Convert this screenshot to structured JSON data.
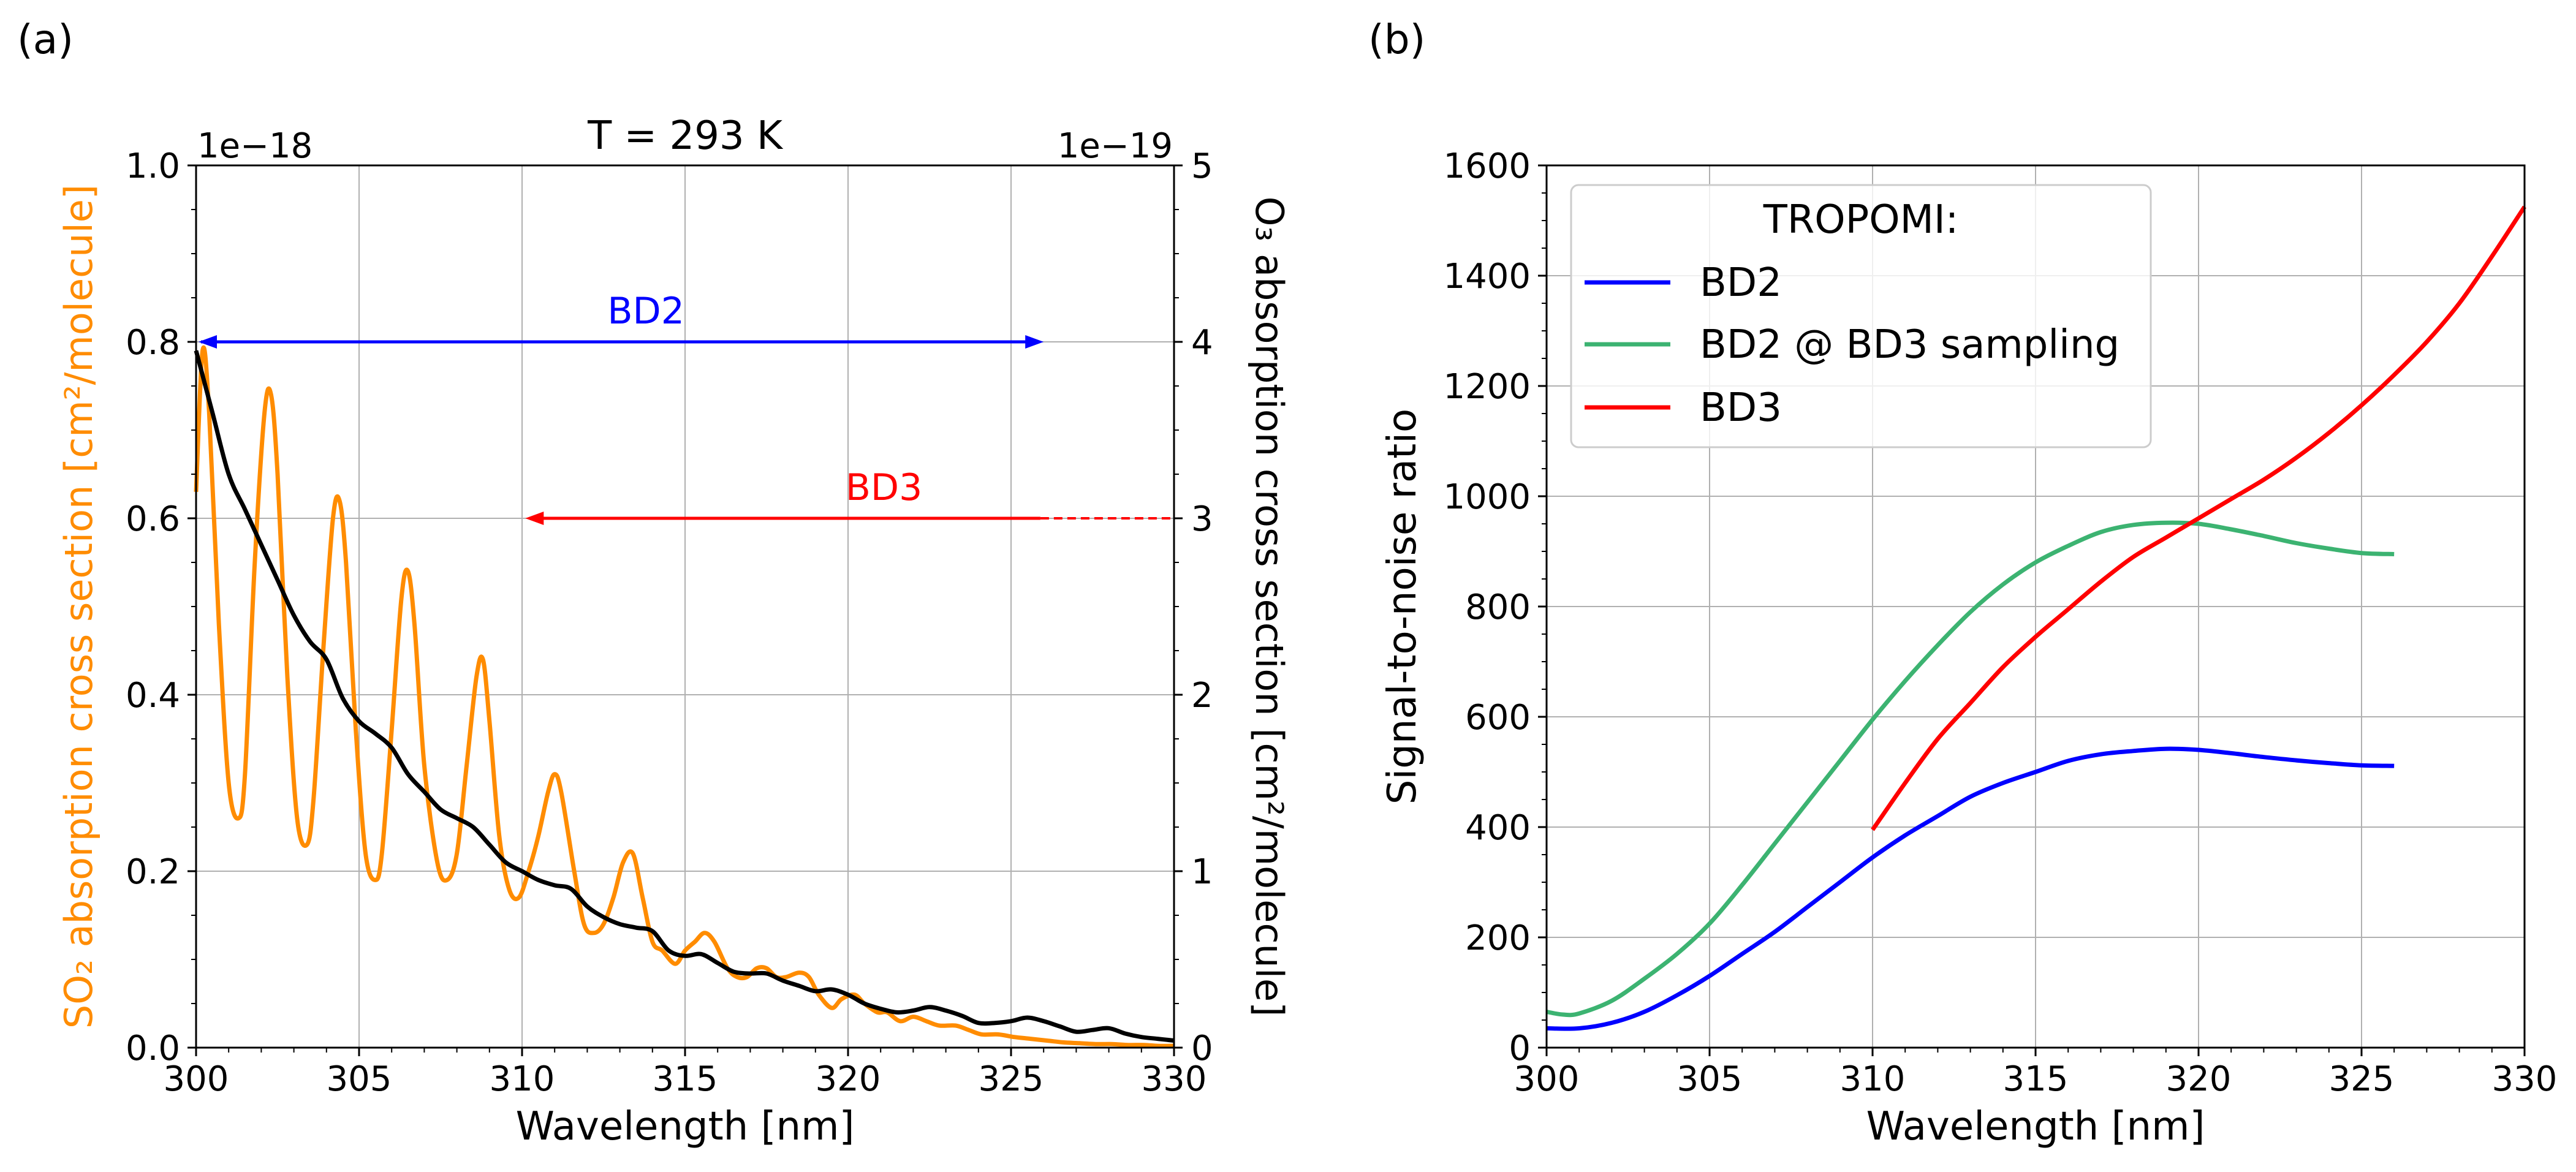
{
  "figure": {
    "panel_a_label": "(a)",
    "panel_b_label": "(b)"
  },
  "chart_data": [
    {
      "type": "line",
      "panel": "(a)",
      "title": "T = 293 K",
      "xlabel": "Wavelength [nm]",
      "ylabel_left": "SO₂ absorption cross section [cm²/molecule]",
      "ylabel_right": "O₃ absorption cross section [cm²/molecule]",
      "offset_left": "1e−18",
      "offset_right": "1e−19",
      "xlim": [
        300,
        330
      ],
      "ylim_left": [
        0.0,
        1.0
      ],
      "ylim_right": [
        0,
        5
      ],
      "xticks": [
        "300",
        "305",
        "310",
        "315",
        "320",
        "325",
        "330"
      ],
      "yticks_left": [
        "0.0",
        "0.2",
        "0.4",
        "0.6",
        "0.8",
        "1.0"
      ],
      "yticks_right": [
        "0",
        "1",
        "2",
        "3",
        "4",
        "5"
      ],
      "grid": true,
      "colors": {
        "so2": "#ff8c00",
        "o3": "#000000",
        "bd2": "#0000ff",
        "bd3": "#ff0000",
        "grid": "#b0b0b0"
      },
      "series": [
        {
          "key": "so2",
          "axis": "left",
          "x": [
            300.0,
            300.2,
            300.4,
            300.7,
            301.0,
            301.3,
            301.5,
            301.8,
            302.1,
            302.3,
            302.5,
            302.8,
            303.1,
            303.4,
            303.6,
            303.9,
            304.2,
            304.4,
            304.6,
            304.9,
            305.2,
            305.5,
            305.7,
            306.0,
            306.3,
            306.5,
            306.7,
            307.0,
            307.4,
            307.7,
            308.0,
            308.3,
            308.6,
            308.8,
            309.0,
            309.3,
            309.6,
            309.9,
            310.2,
            310.5,
            310.8,
            311.0,
            311.2,
            311.6,
            311.9,
            312.2,
            312.5,
            312.8,
            313.1,
            313.4,
            313.7,
            314.0,
            314.3,
            314.7,
            315.0,
            315.3,
            315.6,
            315.9,
            316.3,
            316.6,
            316.9,
            317.2,
            317.5,
            317.8,
            318.1,
            318.5,
            318.8,
            319.1,
            319.5,
            319.8,
            320.2,
            320.5,
            320.9,
            321.2,
            321.6,
            322.0,
            322.4,
            322.8,
            323.3,
            323.7,
            324.1,
            324.6,
            325.1,
            325.6,
            326.1,
            326.6,
            327.1,
            327.6,
            328.1,
            328.6,
            329.1,
            329.5,
            330.0
          ],
          "y": [
            0.63,
            0.79,
            0.72,
            0.48,
            0.3,
            0.26,
            0.31,
            0.55,
            0.72,
            0.74,
            0.65,
            0.42,
            0.26,
            0.23,
            0.28,
            0.45,
            0.6,
            0.62,
            0.55,
            0.36,
            0.22,
            0.19,
            0.22,
            0.36,
            0.51,
            0.54,
            0.48,
            0.32,
            0.21,
            0.19,
            0.22,
            0.32,
            0.42,
            0.44,
            0.37,
            0.24,
            0.18,
            0.17,
            0.2,
            0.24,
            0.29,
            0.31,
            0.29,
            0.2,
            0.14,
            0.13,
            0.14,
            0.17,
            0.21,
            0.22,
            0.17,
            0.12,
            0.11,
            0.095,
            0.11,
            0.12,
            0.13,
            0.12,
            0.09,
            0.08,
            0.08,
            0.09,
            0.09,
            0.08,
            0.08,
            0.085,
            0.08,
            0.06,
            0.045,
            0.055,
            0.06,
            0.05,
            0.04,
            0.04,
            0.03,
            0.035,
            0.03,
            0.025,
            0.025,
            0.02,
            0.015,
            0.015,
            0.012,
            0.01,
            0.008,
            0.006,
            0.005,
            0.004,
            0.004,
            0.003,
            0.003,
            0.002,
            0.002
          ]
        },
        {
          "key": "o3",
          "axis": "right",
          "x": [
            300.0,
            300.5,
            301.0,
            301.5,
            302.0,
            302.5,
            303.0,
            303.5,
            304.0,
            304.5,
            305.0,
            305.5,
            306.0,
            306.5,
            307.0,
            307.5,
            308.0,
            308.5,
            309.0,
            309.5,
            310.0,
            310.5,
            311.0,
            311.5,
            312.0,
            312.5,
            313.0,
            313.5,
            314.0,
            314.5,
            315.0,
            315.5,
            316.0,
            316.5,
            317.0,
            317.5,
            318.0,
            318.5,
            319.0,
            319.5,
            320.0,
            320.5,
            321.0,
            321.5,
            322.0,
            322.5,
            323.0,
            323.5,
            324.0,
            324.5,
            325.0,
            325.5,
            326.0,
            326.5,
            327.0,
            327.5,
            328.0,
            328.5,
            329.0,
            329.5,
            330.0
          ],
          "y": [
            3.95,
            3.6,
            3.25,
            3.05,
            2.85,
            2.65,
            2.45,
            2.3,
            2.2,
            1.98,
            1.85,
            1.78,
            1.7,
            1.55,
            1.45,
            1.35,
            1.3,
            1.25,
            1.15,
            1.05,
            1.0,
            0.95,
            0.92,
            0.9,
            0.8,
            0.74,
            0.7,
            0.68,
            0.66,
            0.55,
            0.52,
            0.53,
            0.48,
            0.43,
            0.42,
            0.42,
            0.38,
            0.35,
            0.32,
            0.33,
            0.3,
            0.25,
            0.22,
            0.2,
            0.21,
            0.23,
            0.21,
            0.18,
            0.14,
            0.14,
            0.15,
            0.17,
            0.15,
            0.12,
            0.09,
            0.1,
            0.11,
            0.08,
            0.06,
            0.05,
            0.04
          ]
        }
      ],
      "annotations": [
        {
          "key": "bd2",
          "text": "BD2",
          "y_left": 0.8,
          "from": 300.0,
          "to": 326.0,
          "arrows": "both",
          "label_x": 313.8
        },
        {
          "key": "bd3",
          "text": "BD3",
          "y_left": 0.6,
          "from": 325.9,
          "to": 310.1,
          "arrows": "end",
          "dashed_from": 325.9,
          "dashed_to": 330.0,
          "label_x": 321.1
        }
      ]
    },
    {
      "type": "line",
      "panel": "(b)",
      "xlabel": "Wavelength [nm]",
      "ylabel": "Signal-to-noise ratio",
      "xlim": [
        300,
        330
      ],
      "ylim": [
        0,
        1600
      ],
      "xticks": [
        "300",
        "305",
        "310",
        "315",
        "320",
        "325",
        "330"
      ],
      "yticks": [
        "0",
        "200",
        "400",
        "600",
        "800",
        "1000",
        "1200",
        "1400",
        "1600"
      ],
      "grid": true,
      "legend": {
        "title": "TROPOMI:",
        "placement": "top-left"
      },
      "series": [
        {
          "name": "BD2",
          "color": "#0000ff",
          "x": [
            300,
            301,
            302,
            303,
            304,
            305,
            306,
            307,
            308,
            309,
            310,
            311,
            312,
            313,
            314,
            315,
            316,
            317,
            318,
            319,
            320,
            321,
            322,
            323,
            324,
            325,
            326
          ],
          "y": [
            35,
            35,
            45,
            65,
            95,
            130,
            170,
            210,
            255,
            300,
            345,
            385,
            420,
            455,
            480,
            500,
            520,
            532,
            538,
            542,
            540,
            534,
            527,
            521,
            516,
            512,
            511
          ]
        },
        {
          "name": "BD2 @ BD3 sampling",
          "color": "#3cb371",
          "x": [
            300,
            300.5,
            301,
            302,
            303,
            304,
            305,
            306,
            307,
            308,
            309,
            310,
            311,
            312,
            313,
            314,
            315,
            316,
            317,
            318,
            319,
            320,
            321,
            322,
            323,
            324,
            325,
            326
          ],
          "y": [
            65,
            60,
            62,
            85,
            125,
            170,
            225,
            295,
            370,
            445,
            520,
            595,
            665,
            730,
            790,
            840,
            880,
            910,
            935,
            948,
            952,
            950,
            940,
            928,
            915,
            905,
            897,
            895
          ]
        },
        {
          "name": "BD3",
          "color": "#ff0000",
          "x": [
            310,
            311,
            312,
            313,
            314,
            315,
            316,
            317,
            318,
            319,
            320,
            321,
            322,
            323,
            324,
            325,
            326,
            327,
            328,
            329,
            330
          ],
          "y": [
            395,
            480,
            560,
            625,
            690,
            745,
            795,
            845,
            890,
            925,
            960,
            995,
            1030,
            1070,
            1115,
            1165,
            1220,
            1280,
            1350,
            1435,
            1525
          ]
        }
      ]
    }
  ]
}
